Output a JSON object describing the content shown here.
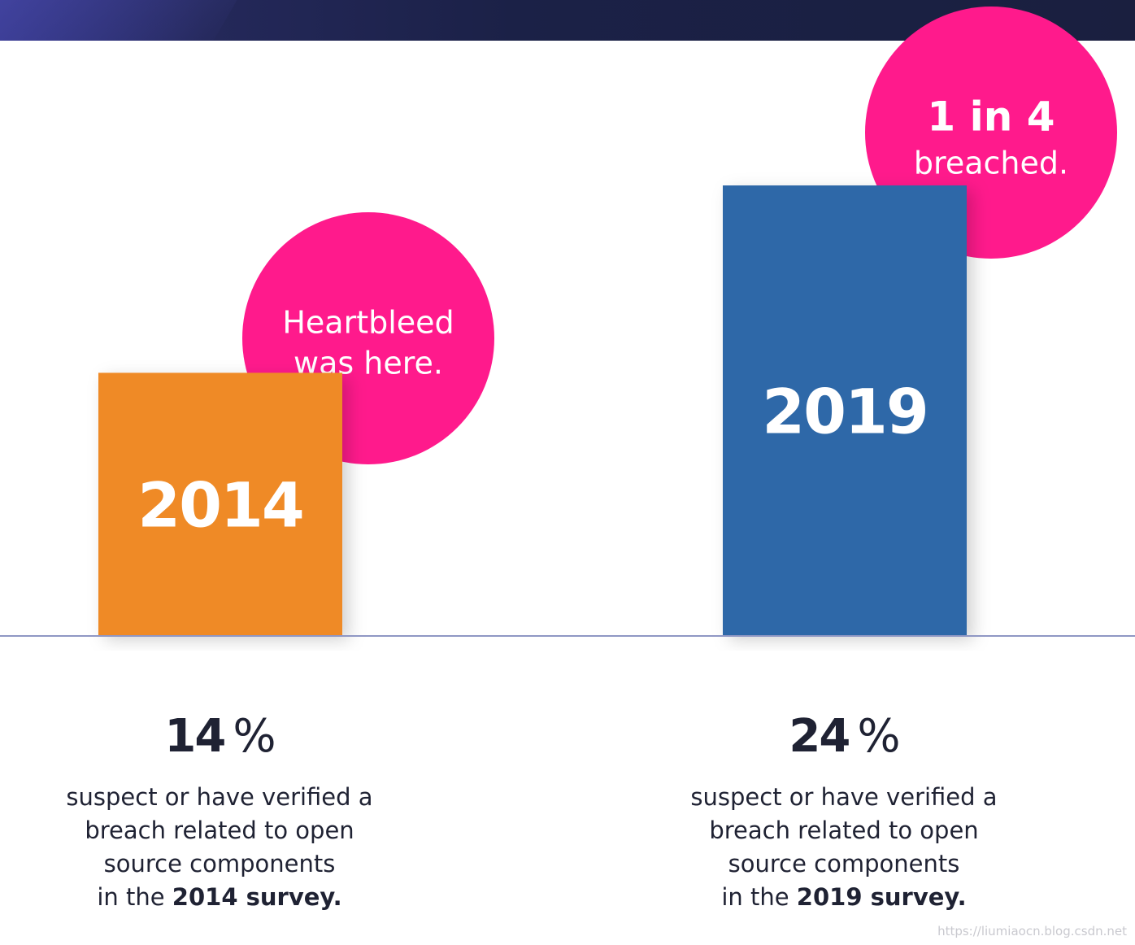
{
  "chart_data": {
    "type": "bar",
    "title": "",
    "xlabel": "",
    "ylabel": "",
    "categories": [
      "2014",
      "2019"
    ],
    "values": [
      14,
      24
    ],
    "unit": "%",
    "ylim": [
      0,
      24
    ],
    "colors": [
      "#ef8a28",
      "#2f68a8"
    ],
    "annotations": [
      {
        "category": "2014",
        "lines": [
          "Heartbleed",
          "was here."
        ]
      },
      {
        "category": "2019",
        "lines": [
          "1 in 4",
          "breached."
        ]
      }
    ],
    "grid": false,
    "legend": "none"
  },
  "accent_color": "#ff1a8c",
  "stats": [
    {
      "percent": "14",
      "percent_sign": "%",
      "desc_line1": "suspect or have verified a",
      "desc_line2": "breach related to open",
      "desc_line3": "source components",
      "desc_prefix": "in the",
      "desc_bold": "2014 survey."
    },
    {
      "percent": "24",
      "percent_sign": "%",
      "desc_line1": "suspect or have verified a",
      "desc_line2": "breach related to open",
      "desc_line3": "source components",
      "desc_prefix": "in the",
      "desc_bold": "2019 survey."
    }
  ],
  "watermark": "https://liumiaocn.blog.csdn.net"
}
